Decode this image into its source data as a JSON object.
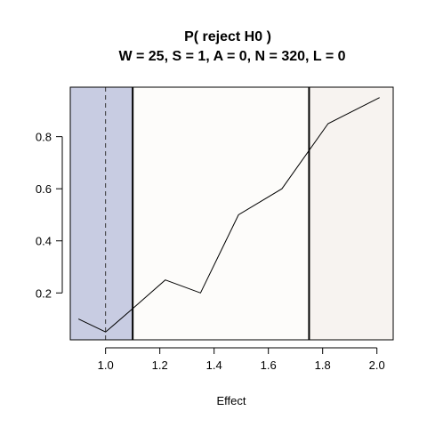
{
  "chart_data": {
    "type": "line",
    "title": "P( reject H0 )",
    "subtitle": "W = 25, S = 1, A = 0, N = 320, L = 0",
    "xlabel": "Effect",
    "ylabel": "",
    "xlim": [
      0.87,
      2.06
    ],
    "ylim": [
      0.02,
      0.99
    ],
    "x_ticks": [
      1.0,
      1.2,
      1.4,
      1.6,
      1.8,
      2.0
    ],
    "x_tick_labels": [
      "1.0",
      "1.2",
      "1.4",
      "1.6",
      "1.8",
      "2.0"
    ],
    "y_ticks": [
      0.2,
      0.4,
      0.6,
      0.8
    ],
    "y_tick_labels": [
      "0.2",
      "0.4",
      "0.6",
      "0.8"
    ],
    "grid": false,
    "series": [
      {
        "x": [
          0.9,
          1.0,
          1.1,
          1.22,
          1.35,
          1.49,
          1.65,
          1.82,
          2.01
        ],
        "y": [
          0.1,
          0.05,
          0.14,
          0.25,
          0.2,
          0.5,
          0.6,
          0.85,
          0.95
        ]
      }
    ],
    "regions": [
      {
        "x0": 0.87,
        "x1": 1.1,
        "color": "#c8cce2"
      },
      {
        "x0": 1.1,
        "x1": 1.75,
        "color": "#fdfcfa"
      },
      {
        "x0": 1.75,
        "x1": 2.06,
        "color": "#f7f3f0"
      }
    ],
    "vlines_solid": [
      1.1,
      1.75
    ],
    "vline_dashed": 1.0,
    "line_color": "#000000"
  }
}
